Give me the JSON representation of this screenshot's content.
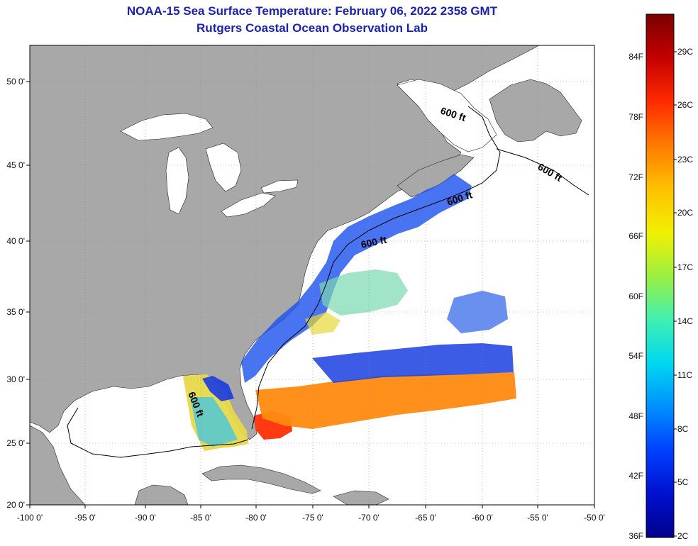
{
  "title": {
    "line1": "NOAA-15 Sea Surface Temperature:  February 06, 2022 2358 GMT",
    "line2": "Rutgers Coastal Ocean Observation Lab"
  },
  "axes": {
    "lon_ticks": [
      "-100 0'",
      "-95 0'",
      "-90 0'",
      "-85 0'",
      "-80 0'",
      "-75 0'",
      "-70 0'",
      "-65 0'",
      "-60 0'",
      "-55 0'",
      "-50 0'"
    ],
    "lat_ticks": [
      "50 0'",
      "45 0'",
      "40 0'",
      "35 0'",
      "30 0'",
      "25 0'",
      "20 0'"
    ]
  },
  "contours": {
    "label": "600 ft"
  },
  "colorbar": {
    "fahrenheit": [
      "84F",
      "78F",
      "72F",
      "66F",
      "60F",
      "54F",
      "48F",
      "42F",
      "36F"
    ],
    "celsius": [
      "29C",
      "26C",
      "23C",
      "20C",
      "17C",
      "14C",
      "11C",
      "8C",
      "5C",
      "2C"
    ],
    "colors": [
      "#7a0000",
      "#c40000",
      "#ff2a00",
      "#ff7a00",
      "#ffc000",
      "#f2f000",
      "#9cf040",
      "#40f0b0",
      "#00d8f0",
      "#0090ff",
      "#0040ff",
      "#0010d0",
      "#00008a"
    ]
  },
  "colors": {
    "land": "#a8a8a8",
    "ocean": "#ffffff",
    "title": "#1a22b0"
  }
}
